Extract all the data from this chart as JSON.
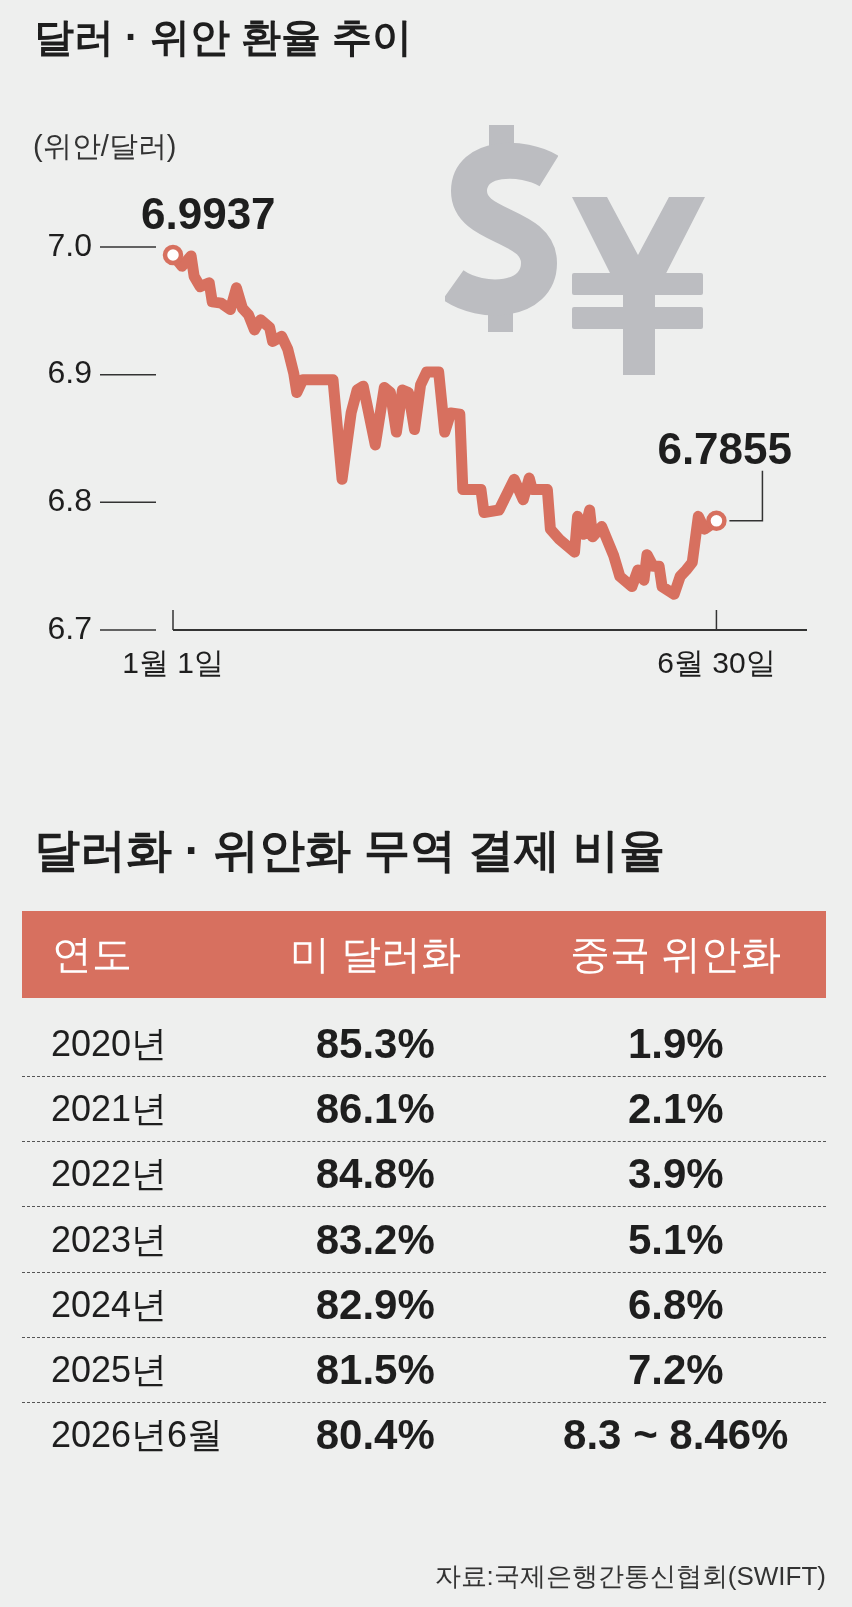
{
  "chart_data": [
    {
      "type": "line",
      "title": "달러 · 위안 환율 추이",
      "ylabel": "(위안/달러)",
      "line_style": "solid",
      "series": [
        {
          "color": "#d7705f",
          "x": [
            "--01-01",
            "--01-04",
            "--01-07",
            "--01-08",
            "--01-10",
            "--01-13",
            "--01-14",
            "--01-17",
            "--01-20",
            "--01-22",
            "--01-24",
            "--01-26",
            "--01-28",
            "--01-30",
            "--02-02",
            "--02-03",
            "--02-06",
            "--02-08",
            "--02-10",
            "--02-11",
            "--02-13",
            "--02-23",
            "--02-26",
            "--03-01",
            "--03-03",
            "--03-05",
            "--03-09",
            "--03-12",
            "--03-14",
            "--03-16",
            "--03-18",
            "--03-20",
            "--03-22",
            "--03-24",
            "--03-26",
            "--03-30",
            "--04-01",
            "--04-03",
            "--04-06",
            "--04-07",
            "--04-13",
            "--04-14",
            "--04-19",
            "--04-24",
            "--04-27",
            "--04-29",
            "--04-30",
            "--05-05",
            "--05-06",
            "--05-09",
            "--05-14",
            "--05-15",
            "--05-17",
            "--05-19",
            "--05-20",
            "--05-23",
            "--05-27",
            "--05-29",
            "--06-02",
            "--06-04",
            "--06-06",
            "--06-07",
            "--06-09",
            "--06-11",
            "--06-12",
            "--06-16",
            "--06-18",
            "--06-20",
            "--06-22",
            "--06-24",
            "--06-26",
            "--06-30"
          ],
          "values": [
            6.9937,
            6.985,
            6.993,
            6.977,
            6.969,
            6.972,
            6.957,
            6.956,
            6.951,
            6.968,
            6.952,
            6.947,
            6.935,
            6.943,
            6.937,
            6.926,
            6.93,
            6.92,
            6.901,
            6.886,
            6.896,
            6.896,
            6.818,
            6.87,
            6.888,
            6.891,
            6.845,
            6.89,
            6.886,
            6.855,
            6.888,
            6.886,
            6.857,
            6.892,
            6.902,
            6.902,
            6.855,
            6.87,
            6.869,
            6.81,
            6.81,
            6.792,
            6.794,
            6.818,
            6.802,
            6.819,
            6.81,
            6.81,
            6.779,
            6.771,
            6.761,
            6.789,
            6.775,
            6.794,
            6.773,
            6.781,
            6.758,
            6.742,
            6.734,
            6.747,
            6.739,
            6.759,
            6.75,
            6.75,
            6.734,
            6.728,
            6.742,
            6.747,
            6.753,
            6.789,
            6.779,
            6.7855
          ]
        },
        {
          "type": "scatter",
          "color": "#ffffff",
          "marker": "circle",
          "x": [
            "--01-01",
            "--06-30"
          ],
          "values": [
            6.9937,
            6.7855
          ]
        }
      ],
      "xlim": [
        "--01-01",
        "--07-30"
      ],
      "ylim": [
        6.7,
        7.0
      ],
      "xticks": [
        {
          "value": "--01-01",
          "label": "1월 1일"
        },
        {
          "value": "--06-30",
          "label": "6월 30일"
        }
      ],
      "yticks": [
        6.7,
        6.8,
        6.9,
        {
          "value": 7,
          "label": "7.0"
        }
      ],
      "annotations": [
        {
          "text": "6.9937",
          "x": "--01-01",
          "y": 6.9937
        },
        {
          "text": "6.7855",
          "x": "--06-30",
          "y": 6.7855
        }
      ]
    },
    {
      "type": "heatmap",
      "title": "달러화 · 위안화 무역 결제 비율",
      "ylabel": "연도",
      "categories": [
        "미 달러화",
        "중국 위안화"
      ],
      "y_categories": [
        "2020년",
        "2021년",
        "2022년",
        "2023년",
        "2024년",
        "2025년",
        "2026년6월"
      ],
      "cells": [
        [
          85.3,
          1.9
        ],
        [
          86.1,
          2.1
        ],
        [
          84.8,
          3.9
        ],
        [
          83.2,
          5.1
        ],
        [
          82.9,
          6.8
        ],
        [
          81.5,
          7.2
        ],
        [
          80.4,
          null
        ]
      ],
      "cell_labels": [
        [
          "85.3%",
          "1.9%"
        ],
        [
          "86.1%",
          "2.1%"
        ],
        [
          "84.8%",
          "3.9%"
        ],
        [
          "83.2%",
          "5.1%"
        ],
        [
          "82.9%",
          "6.8%"
        ],
        [
          "81.5%",
          "7.2%"
        ],
        [
          "80.4%",
          "8.3 ~ 8.46%"
        ]
      ],
      "annotations": [
        "자료:국제은행간통신협회(SWIFT)"
      ]
    }
  ]
}
